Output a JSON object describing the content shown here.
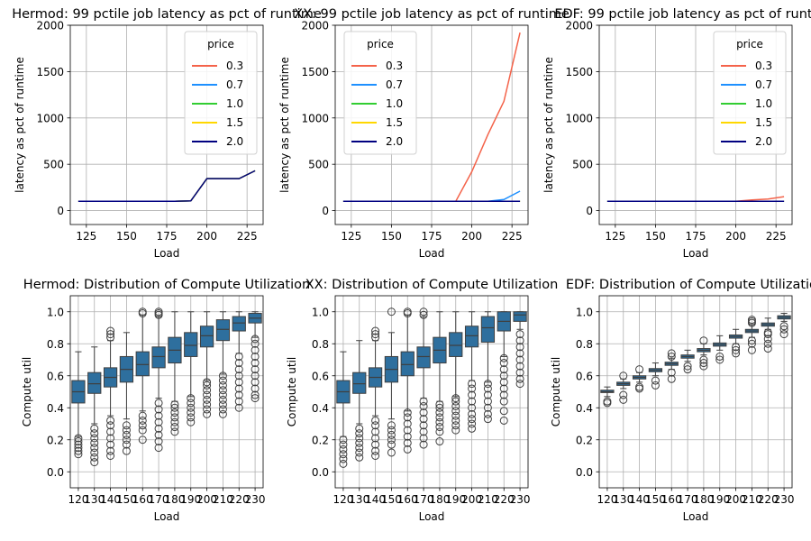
{
  "chart_data": [
    {
      "type": "line",
      "title": "Hermod: 99 pctile job latency as pct of runtime",
      "xlabel": "Load",
      "ylabel": "latency as pct of runtime",
      "xlim": [
        115,
        235
      ],
      "ylim": [
        -150,
        2000
      ],
      "xticks": [
        125,
        150,
        175,
        200,
        225
      ],
      "yticks": [
        0,
        500,
        1000,
        1500,
        2000
      ],
      "grid": true,
      "legend": {
        "title": "price",
        "placement": "top-right"
      },
      "x": [
        120,
        130,
        140,
        150,
        160,
        170,
        180,
        190,
        200,
        210,
        220,
        230
      ],
      "series": [
        {
          "name": "0.3",
          "color": "#f4634a",
          "values": [
            100,
            100,
            100,
            100,
            100,
            100,
            100,
            105,
            345,
            345,
            345,
            430
          ]
        },
        {
          "name": "0.7",
          "color": "#1e90ff",
          "values": [
            100,
            100,
            100,
            100,
            100,
            100,
            100,
            105,
            345,
            345,
            345,
            430
          ]
        },
        {
          "name": "1.0",
          "color": "#32cd32",
          "values": [
            100,
            100,
            100,
            100,
            100,
            100,
            100,
            105,
            345,
            345,
            345,
            430
          ]
        },
        {
          "name": "1.5",
          "color": "#ffd700",
          "values": [
            100,
            100,
            100,
            100,
            100,
            100,
            100,
            105,
            345,
            345,
            345,
            430
          ]
        },
        {
          "name": "2.0",
          "color": "#000080",
          "values": [
            100,
            100,
            100,
            100,
            100,
            100,
            100,
            105,
            345,
            345,
            345,
            430
          ]
        }
      ]
    },
    {
      "type": "line",
      "title": "XX: 99 pctile job latency as pct of runtime",
      "xlabel": "Load",
      "ylabel": "latency as pct of runtime",
      "xlim": [
        115,
        235
      ],
      "ylim": [
        -150,
        2000
      ],
      "xticks": [
        125,
        150,
        175,
        200,
        225
      ],
      "yticks": [
        0,
        500,
        1000,
        1500,
        2000
      ],
      "grid": true,
      "legend": {
        "title": "price",
        "placement": "top-left"
      },
      "x": [
        120,
        130,
        140,
        150,
        160,
        170,
        180,
        190,
        200,
        210,
        220,
        230
      ],
      "series": [
        {
          "name": "0.3",
          "color": "#f4634a",
          "values": [
            100,
            100,
            100,
            100,
            100,
            100,
            100,
            100,
            420,
            820,
            1180,
            1920
          ]
        },
        {
          "name": "0.7",
          "color": "#1e90ff",
          "values": [
            100,
            100,
            100,
            100,
            100,
            100,
            100,
            100,
            100,
            100,
            120,
            210
          ]
        },
        {
          "name": "1.0",
          "color": "#32cd32",
          "values": [
            100,
            100,
            100,
            100,
            100,
            100,
            100,
            100,
            100,
            100,
            100,
            100
          ]
        },
        {
          "name": "1.5",
          "color": "#ffd700",
          "values": [
            100,
            100,
            100,
            100,
            100,
            100,
            100,
            100,
            100,
            100,
            100,
            100
          ]
        },
        {
          "name": "2.0",
          "color": "#000080",
          "values": [
            100,
            100,
            100,
            100,
            100,
            100,
            100,
            100,
            100,
            100,
            100,
            100
          ]
        }
      ]
    },
    {
      "type": "line",
      "title": "EDF: 99 pctile job latency as pct of runtime",
      "xlabel": "Load",
      "ylabel": "latency as pct of runtime",
      "xlim": [
        115,
        235
      ],
      "ylim": [
        -150,
        2000
      ],
      "xticks": [
        125,
        150,
        175,
        200,
        225
      ],
      "yticks": [
        0,
        500,
        1000,
        1500,
        2000
      ],
      "grid": true,
      "legend": {
        "title": "price",
        "placement": "top-right"
      },
      "x": [
        120,
        130,
        140,
        150,
        160,
        170,
        180,
        190,
        200,
        210,
        220,
        230
      ],
      "series": [
        {
          "name": "0.3",
          "color": "#f4634a",
          "values": [
            100,
            100,
            100,
            100,
            100,
            100,
            100,
            100,
            100,
            115,
            125,
            150
          ]
        },
        {
          "name": "0.7",
          "color": "#1e90ff",
          "values": [
            100,
            100,
            100,
            100,
            100,
            100,
            100,
            100,
            100,
            100,
            100,
            100
          ]
        },
        {
          "name": "1.0",
          "color": "#32cd32",
          "values": [
            100,
            100,
            100,
            100,
            100,
            100,
            100,
            100,
            100,
            100,
            100,
            100
          ]
        },
        {
          "name": "1.5",
          "color": "#ffd700",
          "values": [
            100,
            100,
            100,
            100,
            100,
            100,
            100,
            100,
            100,
            100,
            100,
            100
          ]
        },
        {
          "name": "2.0",
          "color": "#000080",
          "values": [
            100,
            100,
            100,
            100,
            100,
            100,
            100,
            100,
            100,
            100,
            100,
            100
          ]
        }
      ]
    },
    {
      "type": "box",
      "title": "Hermod: Distribution of Compute Utilization",
      "xlabel": "Load",
      "ylabel": "Compute util",
      "ylim": [
        -0.1,
        1.1
      ],
      "yticks": [
        0.0,
        0.2,
        0.4,
        0.6,
        0.8,
        1.0
      ],
      "grid": true,
      "box_color": "#2e6f9e",
      "categories": [
        "120",
        "130",
        "140",
        "150",
        "160",
        "170",
        "180",
        "190",
        "200",
        "210",
        "220",
        "230"
      ],
      "boxes": [
        {
          "q1": 0.43,
          "median": 0.5,
          "q3": 0.57,
          "whisker_low": 0.22,
          "whisker_high": 0.75,
          "outliers": [
            0.11,
            0.13,
            0.15,
            0.17,
            0.19,
            0.21
          ]
        },
        {
          "q1": 0.49,
          "median": 0.55,
          "q3": 0.62,
          "whisker_low": 0.3,
          "whisker_high": 0.78,
          "outliers": [
            0.06,
            0.09,
            0.12,
            0.15,
            0.18,
            0.21,
            0.24,
            0.27
          ]
        },
        {
          "q1": 0.53,
          "median": 0.59,
          "q3": 0.65,
          "whisker_low": 0.35,
          "whisker_high": 0.82,
          "outliers": [
            0.1,
            0.13,
            0.17,
            0.21,
            0.25,
            0.29,
            0.32,
            0.84,
            0.86,
            0.88
          ]
        },
        {
          "q1": 0.56,
          "median": 0.64,
          "q3": 0.72,
          "whisker_low": 0.33,
          "whisker_high": 0.87,
          "outliers": [
            0.13,
            0.17,
            0.2,
            0.23,
            0.26,
            0.29
          ]
        },
        {
          "q1": 0.6,
          "median": 0.67,
          "q3": 0.75,
          "whisker_low": 0.38,
          "whisker_high": 0.98,
          "outliers": [
            0.2,
            0.26,
            0.29,
            0.32,
            0.35,
            0.99,
            1.0
          ]
        },
        {
          "q1": 0.65,
          "median": 0.72,
          "q3": 0.78,
          "whisker_low": 0.46,
          "whisker_high": 0.97,
          "outliers": [
            0.15,
            0.19,
            0.23,
            0.27,
            0.31,
            0.35,
            0.39,
            0.43,
            0.98,
            0.99,
            1.0
          ]
        },
        {
          "q1": 0.68,
          "median": 0.76,
          "q3": 0.84,
          "whisker_low": 0.44,
          "whisker_high": 1.0,
          "outliers": [
            0.25,
            0.28,
            0.31,
            0.34,
            0.37,
            0.4,
            0.42
          ]
        },
        {
          "q1": 0.72,
          "median": 0.79,
          "q3": 0.87,
          "whisker_low": 0.47,
          "whisker_high": 1.0,
          "outliers": [
            0.31,
            0.34,
            0.37,
            0.4,
            0.43,
            0.46
          ]
        },
        {
          "q1": 0.78,
          "median": 0.85,
          "q3": 0.91,
          "whisker_low": 0.57,
          "whisker_high": 1.0,
          "outliers": [
            0.36,
            0.39,
            0.42,
            0.45,
            0.48,
            0.51,
            0.54,
            0.56
          ]
        },
        {
          "q1": 0.82,
          "median": 0.89,
          "q3": 0.95,
          "whisker_low": 0.61,
          "whisker_high": 1.0,
          "outliers": [
            0.36,
            0.39,
            0.42,
            0.45,
            0.48,
            0.51,
            0.54,
            0.57,
            0.6
          ]
        },
        {
          "q1": 0.88,
          "median": 0.93,
          "q3": 0.97,
          "whisker_low": 0.74,
          "whisker_high": 1.0,
          "outliers": [
            0.4,
            0.44,
            0.48,
            0.52,
            0.56,
            0.6,
            0.64,
            0.68,
            0.72
          ]
        },
        {
          "q1": 0.93,
          "median": 0.96,
          "q3": 0.99,
          "whisker_low": 0.84,
          "whisker_high": 1.0,
          "outliers": [
            0.46,
            0.48,
            0.52,
            0.56,
            0.6,
            0.64,
            0.68,
            0.72,
            0.76,
            0.8,
            0.83
          ]
        }
      ]
    },
    {
      "type": "box",
      "title": "XX: Distribution of Compute Utilization",
      "xlabel": "Load",
      "ylabel": "Compute util",
      "ylim": [
        -0.1,
        1.1
      ],
      "yticks": [
        0.0,
        0.2,
        0.4,
        0.6,
        0.8,
        1.0
      ],
      "grid": true,
      "box_color": "#2e6f9e",
      "categories": [
        "120",
        "130",
        "140",
        "150",
        "160",
        "170",
        "180",
        "190",
        "200",
        "210",
        "220",
        "230"
      ],
      "boxes": [
        {
          "q1": 0.43,
          "median": 0.5,
          "q3": 0.57,
          "whisker_low": 0.22,
          "whisker_high": 0.75,
          "outliers": [
            0.05,
            0.08,
            0.11,
            0.14,
            0.17,
            0.2
          ]
        },
        {
          "q1": 0.49,
          "median": 0.55,
          "q3": 0.62,
          "whisker_low": 0.3,
          "whisker_high": 0.82,
          "outliers": [
            0.09,
            0.12,
            0.15,
            0.18,
            0.21,
            0.24,
            0.27
          ]
        },
        {
          "q1": 0.53,
          "median": 0.59,
          "q3": 0.65,
          "whisker_low": 0.35,
          "whisker_high": 0.82,
          "outliers": [
            0.1,
            0.13,
            0.17,
            0.21,
            0.25,
            0.29,
            0.32,
            0.84,
            0.86,
            0.88
          ]
        },
        {
          "q1": 0.56,
          "median": 0.64,
          "q3": 0.72,
          "whisker_low": 0.33,
          "whisker_high": 0.87,
          "outliers": [
            0.12,
            0.17,
            0.2,
            0.23,
            0.26,
            0.29,
            1.0
          ]
        },
        {
          "q1": 0.6,
          "median": 0.67,
          "q3": 0.75,
          "whisker_low": 0.38,
          "whisker_high": 0.98,
          "outliers": [
            0.14,
            0.18,
            0.22,
            0.26,
            0.3,
            0.34,
            0.37,
            0.99,
            1.0
          ]
        },
        {
          "q1": 0.65,
          "median": 0.72,
          "q3": 0.78,
          "whisker_low": 0.46,
          "whisker_high": 0.97,
          "outliers": [
            0.17,
            0.21,
            0.25,
            0.29,
            0.33,
            0.37,
            0.41,
            0.44,
            0.98,
            1.0
          ]
        },
        {
          "q1": 0.68,
          "median": 0.76,
          "q3": 0.84,
          "whisker_low": 0.44,
          "whisker_high": 1.0,
          "outliers": [
            0.19,
            0.25,
            0.28,
            0.31,
            0.34,
            0.37,
            0.4,
            0.42
          ]
        },
        {
          "q1": 0.72,
          "median": 0.79,
          "q3": 0.87,
          "whisker_low": 0.47,
          "whisker_high": 1.0,
          "outliers": [
            0.26,
            0.29,
            0.32,
            0.35,
            0.38,
            0.41,
            0.44,
            0.46
          ]
        },
        {
          "q1": 0.78,
          "median": 0.85,
          "q3": 0.91,
          "whisker_low": 0.57,
          "whisker_high": 1.0,
          "outliers": [
            0.27,
            0.3,
            0.33,
            0.36,
            0.4,
            0.44,
            0.48,
            0.52,
            0.55
          ]
        },
        {
          "q1": 0.81,
          "median": 0.9,
          "q3": 0.97,
          "whisker_low": 0.56,
          "whisker_high": 1.0,
          "outliers": [
            0.33,
            0.36,
            0.4,
            0.44,
            0.48,
            0.52,
            0.55
          ]
        },
        {
          "q1": 0.88,
          "median": 0.94,
          "q3": 1.0,
          "whisker_low": 0.72,
          "whisker_high": 1.0,
          "outliers": [
            0.32,
            0.38,
            0.44,
            0.48,
            0.52,
            0.56,
            0.6,
            0.64,
            0.68,
            0.71
          ]
        },
        {
          "q1": 0.94,
          "median": 0.98,
          "q3": 1.0,
          "whisker_low": 0.89,
          "whisker_high": 1.0,
          "outliers": [
            0.55,
            0.58,
            0.62,
            0.66,
            0.7,
            0.74,
            0.78,
            0.82,
            0.86
          ]
        }
      ]
    },
    {
      "type": "box",
      "title": "EDF: Distribution of Compute Utilization",
      "xlabel": "Load",
      "ylabel": "Compute util",
      "ylim": [
        -0.1,
        1.1
      ],
      "yticks": [
        0.0,
        0.2,
        0.4,
        0.6,
        0.8,
        1.0
      ],
      "grid": true,
      "box_color": "#2e6f9e",
      "categories": [
        "120",
        "130",
        "140",
        "150",
        "160",
        "170",
        "180",
        "190",
        "200",
        "210",
        "220",
        "230"
      ],
      "boxes": [
        {
          "q1": 0.495,
          "median": 0.5,
          "q3": 0.51,
          "whisker_low": 0.47,
          "whisker_high": 0.53,
          "outliers": [
            0.43,
            0.44
          ]
        },
        {
          "q1": 0.54,
          "median": 0.55,
          "q3": 0.56,
          "whisker_low": 0.52,
          "whisker_high": 0.58,
          "outliers": [
            0.45,
            0.48,
            0.6
          ]
        },
        {
          "q1": 0.58,
          "median": 0.59,
          "q3": 0.6,
          "whisker_low": 0.56,
          "whisker_high": 0.62,
          "outliers": [
            0.52,
            0.53,
            0.64
          ]
        },
        {
          "q1": 0.625,
          "median": 0.635,
          "q3": 0.645,
          "whisker_low": 0.6,
          "whisker_high": 0.68,
          "outliers": [
            0.54,
            0.57
          ]
        },
        {
          "q1": 0.665,
          "median": 0.675,
          "q3": 0.685,
          "whisker_low": 0.64,
          "whisker_high": 0.71,
          "outliers": [
            0.58,
            0.62,
            0.72,
            0.74
          ]
        },
        {
          "q1": 0.71,
          "median": 0.72,
          "q3": 0.73,
          "whisker_low": 0.69,
          "whisker_high": 0.76,
          "outliers": [
            0.64,
            0.66
          ]
        },
        {
          "q1": 0.75,
          "median": 0.76,
          "q3": 0.77,
          "whisker_low": 0.73,
          "whisker_high": 0.8,
          "outliers": [
            0.66,
            0.68,
            0.7,
            0.82
          ]
        },
        {
          "q1": 0.785,
          "median": 0.795,
          "q3": 0.805,
          "whisker_low": 0.76,
          "whisker_high": 0.85,
          "outliers": [
            0.7,
            0.72
          ]
        },
        {
          "q1": 0.835,
          "median": 0.845,
          "q3": 0.855,
          "whisker_low": 0.8,
          "whisker_high": 0.89,
          "outliers": [
            0.74,
            0.76,
            0.78
          ]
        },
        {
          "q1": 0.87,
          "median": 0.88,
          "q3": 0.89,
          "whisker_low": 0.84,
          "whisker_high": 0.92,
          "outliers": [
            0.76,
            0.8,
            0.82,
            0.93,
            0.94,
            0.95
          ]
        },
        {
          "q1": 0.91,
          "median": 0.92,
          "q3": 0.93,
          "whisker_low": 0.89,
          "whisker_high": 0.96,
          "outliers": [
            0.77,
            0.8,
            0.83,
            0.86,
            0.87
          ]
        },
        {
          "q1": 0.955,
          "median": 0.965,
          "q3": 0.975,
          "whisker_low": 0.94,
          "whisker_high": 0.99,
          "outliers": [
            0.86,
            0.89,
            0.91
          ]
        }
      ]
    }
  ]
}
